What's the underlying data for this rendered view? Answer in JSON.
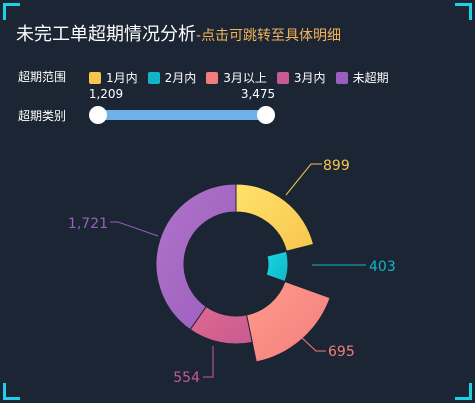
{
  "header": {
    "title": "未完工单超期情况分析",
    "separator": "-",
    "subtitle": "点击可跳转至具体明细"
  },
  "filters": {
    "range_label": "超期范围",
    "type_label": "超期类别",
    "legend": [
      {
        "label": "1月内",
        "color": "#f7c64e"
      },
      {
        "label": "2月内",
        "color": "#10b6c8"
      },
      {
        "label": "3月以上",
        "color": "#f37d7d"
      },
      {
        "label": "3月内",
        "color": "#c75a92"
      },
      {
        "label": "未超期",
        "color": "#9a5fbe"
      }
    ],
    "slider": {
      "min_value": "1,209",
      "max_value": "3,475"
    }
  },
  "chart_data": {
    "type": "pie",
    "variant": "rose-donut",
    "slices": [
      {
        "label": "1月内",
        "value": 899,
        "display": "899",
        "color": "#f7c64e",
        "gradient_end": "#ffe26b"
      },
      {
        "label": "2月内",
        "value": 403,
        "display": "403",
        "color": "#10b6c8",
        "gradient_end": "#19d6e0"
      },
      {
        "label": "3月以上",
        "value": 695,
        "display": "695",
        "color": "#f37d7d",
        "gradient_end": "#ff9b8d"
      },
      {
        "label": "3月内",
        "value": 554,
        "display": "554",
        "color": "#c75a92",
        "gradient_end": "#e06a8f"
      },
      {
        "label": "未超期",
        "value": 1721,
        "display": "1,721",
        "color": "#9a5fbe",
        "gradient_end": "#b073c9"
      }
    ],
    "legend_placement": "top-left"
  }
}
